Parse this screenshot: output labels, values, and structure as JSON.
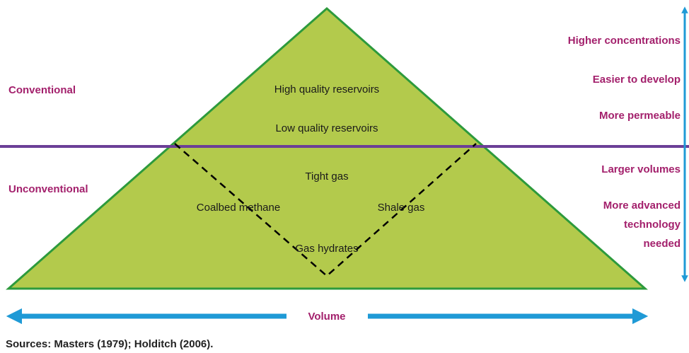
{
  "left_labels": {
    "top": "Conventional",
    "bottom": "Unconventional"
  },
  "triangle": {
    "upper": [
      "High quality reservoirs",
      "Low quality reservoirs"
    ],
    "lower": {
      "center": "Tight gas",
      "left": "Coalbed methane",
      "right": "Shale gas",
      "bottom": "Gas hydrates"
    }
  },
  "right_labels": {
    "upper": [
      "Higher concentrations",
      "Easier to develop",
      "More permeable"
    ],
    "lower": [
      "Larger volumes"
    ],
    "lower_multiline": [
      "More advanced",
      "technology",
      "needed"
    ]
  },
  "axis_label": "Volume",
  "source": "Sources: Masters (1979); Holditch (2006)."
}
